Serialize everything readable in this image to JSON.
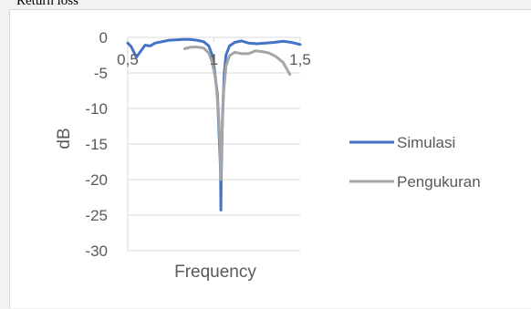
{
  "caption": "Return loss",
  "chart_data": {
    "type": "line",
    "title": "",
    "xlabel": "Frequency",
    "ylabel": "dB",
    "xlim": [
      0.5,
      1.5
    ],
    "ylim": [
      -30,
      0
    ],
    "xticks": [
      0.5,
      1,
      1.5
    ],
    "xtick_labels": [
      "0,5",
      "1",
      "1,5"
    ],
    "yticks": [
      0,
      -5,
      -10,
      -15,
      -20,
      -25,
      -30
    ],
    "ytick_labels": [
      "0",
      "-5",
      "-10",
      "-15",
      "-20",
      "-25",
      "-30"
    ],
    "grid": true,
    "legend_position": "right",
    "series": [
      {
        "name": "Simulasi",
        "color": "#4472c4",
        "points": [
          [
            0.5,
            -0.8
          ],
          [
            0.52,
            -1.3
          ],
          [
            0.55,
            -2.8
          ],
          [
            0.58,
            -1.8
          ],
          [
            0.6,
            -1.1
          ],
          [
            0.63,
            -1.2
          ],
          [
            0.66,
            -0.8
          ],
          [
            0.7,
            -0.6
          ],
          [
            0.74,
            -0.4
          ],
          [
            0.78,
            -0.35
          ],
          [
            0.82,
            -0.3
          ],
          [
            0.86,
            -0.3
          ],
          [
            0.9,
            -0.4
          ],
          [
            0.94,
            -0.6
          ],
          [
            0.97,
            -1.2
          ],
          [
            0.99,
            -2.5
          ],
          [
            1.0,
            -4.0
          ],
          [
            1.02,
            -8.0
          ],
          [
            1.03,
            -14.0
          ],
          [
            1.038,
            -18.5
          ],
          [
            1.04,
            -24.3
          ],
          [
            1.042,
            -20.0
          ],
          [
            1.05,
            -11.0
          ],
          [
            1.06,
            -5.0
          ],
          [
            1.07,
            -2.5
          ],
          [
            1.09,
            -1.2
          ],
          [
            1.12,
            -0.7
          ],
          [
            1.16,
            -0.5
          ],
          [
            1.2,
            -0.8
          ],
          [
            1.25,
            -0.9
          ],
          [
            1.3,
            -0.8
          ],
          [
            1.35,
            -0.7
          ],
          [
            1.4,
            -0.55
          ],
          [
            1.45,
            -0.7
          ],
          [
            1.5,
            -1.0
          ]
        ]
      },
      {
        "name": "Pengukuran",
        "color": "#a5a5a5",
        "points": [
          [
            0.83,
            -1.6
          ],
          [
            0.86,
            -1.4
          ],
          [
            0.9,
            -1.35
          ],
          [
            0.94,
            -1.5
          ],
          [
            0.97,
            -2.2
          ],
          [
            0.99,
            -3.5
          ],
          [
            1.01,
            -6.0
          ],
          [
            1.025,
            -10.0
          ],
          [
            1.035,
            -15.0
          ],
          [
            1.04,
            -20.0
          ],
          [
            1.045,
            -15.0
          ],
          [
            1.055,
            -8.0
          ],
          [
            1.07,
            -4.0
          ],
          [
            1.09,
            -2.6
          ],
          [
            1.12,
            -2.1
          ],
          [
            1.16,
            -2.3
          ],
          [
            1.2,
            -2.3
          ],
          [
            1.24,
            -1.9
          ],
          [
            1.28,
            -2.0
          ],
          [
            1.32,
            -2.2
          ],
          [
            1.36,
            -2.7
          ],
          [
            1.4,
            -3.5
          ],
          [
            1.44,
            -5.2
          ]
        ]
      }
    ]
  }
}
